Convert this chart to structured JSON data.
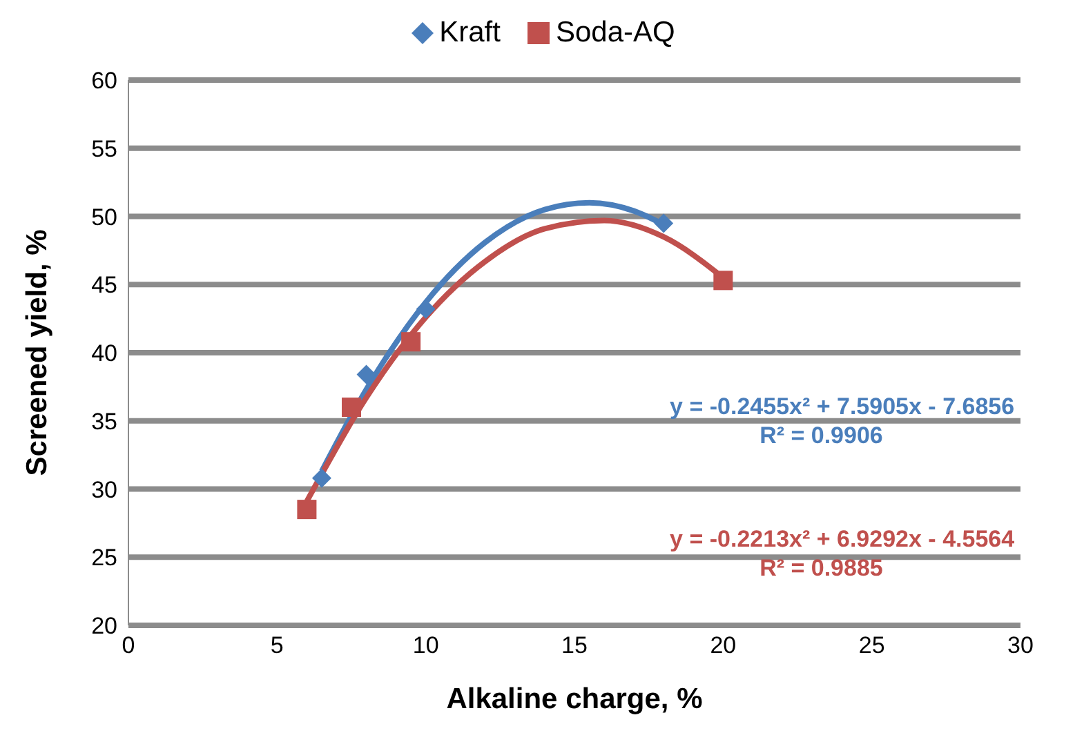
{
  "chart_data": {
    "type": "scatter",
    "xlabel": "Alkaline charge, %",
    "ylabel": "Screened yield, %",
    "xlim": [
      0,
      30
    ],
    "xticks": [
      0,
      5,
      10,
      15,
      20,
      25,
      30
    ],
    "ylim": [
      20,
      60
    ],
    "yticks": [
      20,
      25,
      30,
      35,
      40,
      45,
      50,
      55,
      60
    ],
    "grid": "y",
    "legend": "top",
    "series": [
      {
        "name": "Kraft",
        "marker": "diamond",
        "color": "#4a7ebb",
        "x": [
          6.5,
          8,
          10,
          18
        ],
        "values": [
          30.8,
          38.4,
          43.2,
          49.5
        ]
      },
      {
        "name": "Soda-AQ",
        "marker": "square",
        "color": "#c0504d",
        "x": [
          6,
          7.5,
          9.5,
          20
        ],
        "values": [
          28.5,
          36,
          40.8,
          45.3
        ]
      },
      {
        "type": "line",
        "marker": "none",
        "color": "#4a7ebb",
        "x": [
          6.5,
          8,
          10,
          12,
          14,
          15.5,
          17,
          18
        ],
        "values": [
          31.3,
          37.3,
          43.7,
          48.1,
          50.5,
          51.0,
          50.4,
          49.4
        ]
      },
      {
        "type": "line",
        "marker": "none",
        "color": "#c0504d",
        "x": [
          6,
          8,
          10,
          12,
          14,
          16,
          18,
          20
        ],
        "values": [
          29.1,
          36.7,
          42.6,
          46.7,
          49.1,
          49.7,
          48.5,
          45.5
        ]
      }
    ],
    "annotations": [
      "y = -0.2455x² + 7.5905x - 7.6856",
      "R² = 0.9906",
      "y = -0.2213x² + 6.9292x - 4.5564",
      "R² = 0.9885"
    ]
  }
}
